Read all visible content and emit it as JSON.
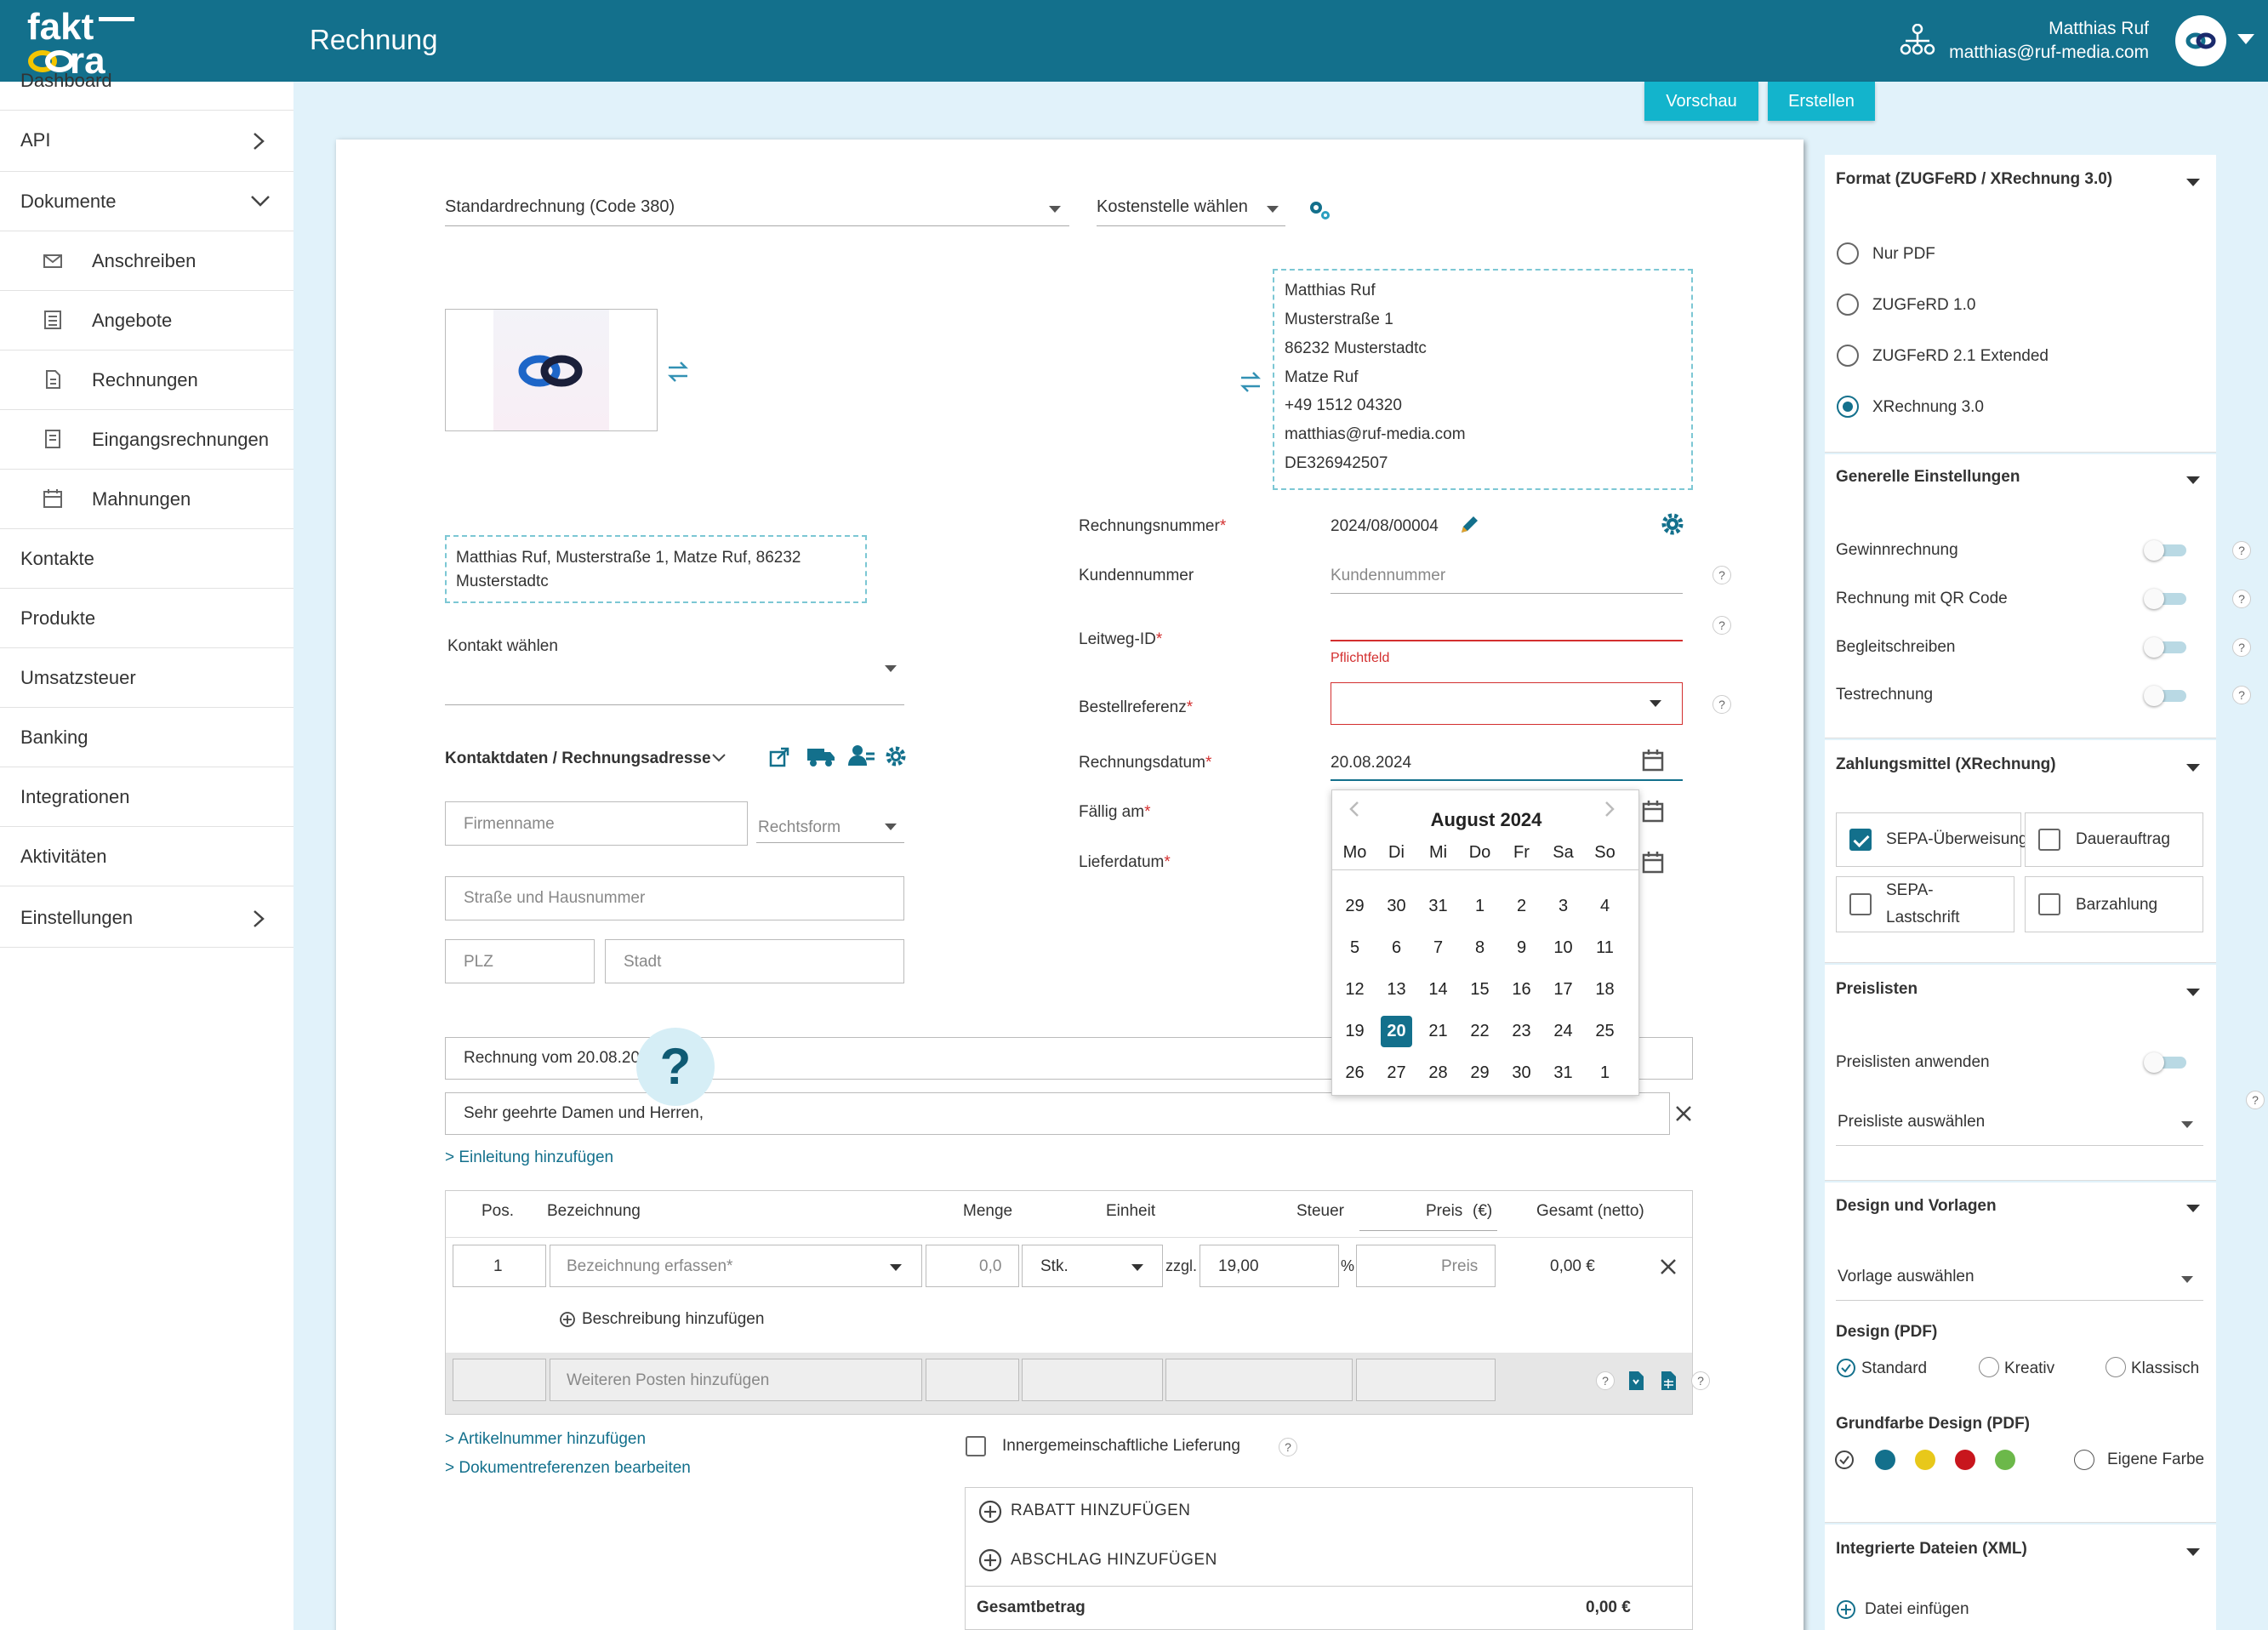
{
  "header": {
    "logo_text": "faktura",
    "page_title": "Rechnung",
    "user_name": "Matthias Ruf",
    "user_email": "matthias@ruf-media.com"
  },
  "sidebar": {
    "items": [
      {
        "label": "Dashboard"
      },
      {
        "label": "API"
      },
      {
        "label": "Dokumente"
      },
      {
        "label": "Anschreiben"
      },
      {
        "label": "Angebote"
      },
      {
        "label": "Rechnungen"
      },
      {
        "label": "Eingangsrechnungen"
      },
      {
        "label": "Mahnungen"
      },
      {
        "label": "Kontakte"
      },
      {
        "label": "Produkte"
      },
      {
        "label": "Umsatzsteuer"
      },
      {
        "label": "Banking"
      },
      {
        "label": "Integrationen"
      },
      {
        "label": "Aktivitäten"
      },
      {
        "label": "Einstellungen"
      }
    ]
  },
  "toolbar": {
    "preview": "Vorschau",
    "create": "Erstellen"
  },
  "doc": {
    "invoice_type": "Standardrechnung (Code 380)",
    "cost_center": "Kostenstelle wählen",
    "sender": [
      "Matthias Ruf",
      "Musterstraße 1",
      "86232 Musterstadtc",
      "Matze Ruf",
      "+49 1512 04320",
      "matthias@ruf-media.com",
      "DE326942507"
    ],
    "address_line1": "Matthias Ruf, Musterstraße 1, Matze Ruf, 86232",
    "address_line2": "Musterstadtc",
    "contact_label": "Kontakt wählen",
    "contact_section": "Kontaktdaten / Rechnungsadresse",
    "company_placeholder": "Firmenname",
    "legal_form": "Rechtsform",
    "street_placeholder": "Straße und Hausnummer",
    "zip_placeholder": "PLZ",
    "city_placeholder": "Stadt",
    "fields": {
      "invoice_number_label": "Rechnungsnummer",
      "invoice_number": "2024/08/00004",
      "customer_number_label": "Kundennummer",
      "customer_number_placeholder": "Kundennummer",
      "leitweg_label": "Leitweg-ID",
      "required_hint": "Pflichtfeld",
      "order_ref_label": "Bestellreferenz",
      "invoice_date_label": "Rechnungsdatum",
      "invoice_date": "20.08.2024",
      "due_label": "Fällig am",
      "delivery_label": "Lieferdatum"
    },
    "subject": "Rechnung vom 20.08.20",
    "greeting": "Sehr geehrte Damen und Herren,",
    "add_intro": "> Einleitung hinzufügen",
    "table": {
      "headers": {
        "pos": "Pos.",
        "desc": "Bezeichnung",
        "qty": "Menge",
        "unit": "Einheit",
        "tax": "Steuer",
        "price": "Preis",
        "currency": "(€)",
        "total": "Gesamt (netto)"
      },
      "row": {
        "pos": "1",
        "desc": "Bezeichnung erfassen*",
        "qty": "0,0",
        "unit": "Stk.",
        "tax_prefix": "zzgl.",
        "tax": "19,00",
        "pct": "%",
        "price": "Preis",
        "total": "0,00 €"
      },
      "add_description": "Beschreibung hinzufügen",
      "add_more": "Weiteren Posten hinzufügen"
    },
    "add_article_number": "> Artikelnummer hinzufügen",
    "edit_doc_refs": "> Dokumentreferenzen bearbeiten",
    "intra_community": "Innergemeinschaftliche Lieferung",
    "add_discount": "RABATT HINZUFÜGEN",
    "add_deduction": "ABSCHLAG HINZUFÜGEN",
    "total_label": "Gesamtbetrag",
    "total_value": "0,00 €"
  },
  "calendar": {
    "month": "August 2024",
    "weekdays": [
      "Mo",
      "Di",
      "Mi",
      "Do",
      "Fr",
      "Sa",
      "So"
    ],
    "weeks": [
      [
        "29",
        "30",
        "31",
        "1",
        "2",
        "3",
        "4"
      ],
      [
        "5",
        "6",
        "7",
        "8",
        "9",
        "10",
        "11"
      ],
      [
        "12",
        "13",
        "14",
        "15",
        "16",
        "17",
        "18"
      ],
      [
        "19",
        "20",
        "21",
        "22",
        "23",
        "24",
        "25"
      ],
      [
        "26",
        "27",
        "28",
        "29",
        "30",
        "31",
        "1"
      ]
    ],
    "selected": "20"
  },
  "right": {
    "format": {
      "title": "Format (ZUGFeRD / XRechnung 3.0)",
      "options": [
        "Nur PDF",
        "ZUGFeRD 1.0",
        "ZUGFeRD 2.1 Extended",
        "XRechnung 3.0"
      ],
      "selected": "XRechnung 3.0"
    },
    "general": {
      "title": "Generelle Einstellungen",
      "options": [
        "Gewinnrechnung",
        "Rechnung mit QR Code",
        "Begleitschreiben",
        "Testrechnung"
      ]
    },
    "payment": {
      "title": "Zahlungsmittel (XRechnung)",
      "options": [
        "SEPA-Überweisung",
        "Dauerauftrag",
        "SEPA-",
        "Lastschrift",
        "Barzahlung"
      ]
    },
    "pricelists": {
      "title": "Preislisten",
      "apply": "Preislisten anwenden",
      "select": "Preisliste auswählen"
    },
    "design": {
      "title": "Design und Vorlagen",
      "template": "Vorlage auswählen",
      "design_label": "Design (PDF)",
      "designs": [
        "Standard",
        "Kreativ",
        "Klassisch"
      ],
      "color_label": "Grundfarbe Design (PDF)",
      "custom_color": "Eigene Farbe",
      "colors": [
        "#13708c",
        "#e8c81a",
        "#c8161d",
        "#6cb84a"
      ]
    },
    "files": {
      "title": "Integrierte Dateien (XML)",
      "add": "Datei einfügen"
    }
  }
}
